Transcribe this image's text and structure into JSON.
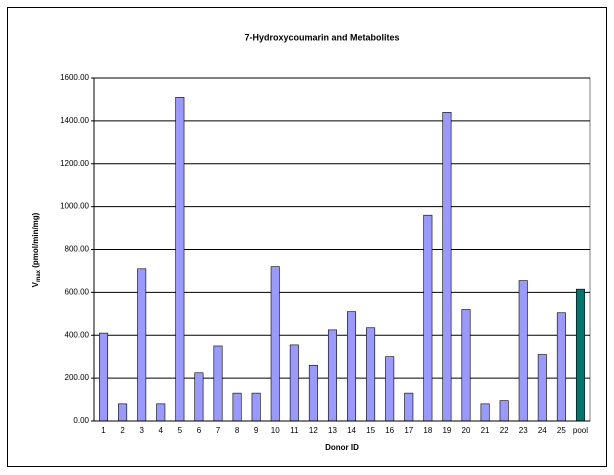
{
  "chart_data": {
    "type": "bar",
    "title": "7-Hydroxycoumarin and Metabolites",
    "x_label": "Donor ID",
    "y_label": {
      "main": "V",
      "subscript": "max",
      "rest": " (pmol/min/mg)"
    },
    "categories": [
      "1",
      "2",
      "3",
      "4",
      "5",
      "6",
      "7",
      "8",
      "9",
      "10",
      "11",
      "12",
      "13",
      "14",
      "15",
      "16",
      "17",
      "18",
      "19",
      "20",
      "21",
      "22",
      "23",
      "24",
      "25",
      "pool"
    ],
    "values": [
      410,
      80,
      710,
      80,
      1510,
      225,
      350,
      130,
      130,
      720,
      355,
      260,
      425,
      510,
      435,
      300,
      130,
      960,
      1440,
      520,
      80,
      95,
      655,
      310,
      505,
      615
    ],
    "colors": [
      "#9999ff",
      "#9999ff",
      "#9999ff",
      "#9999ff",
      "#9999ff",
      "#9999ff",
      "#9999ff",
      "#9999ff",
      "#9999ff",
      "#9999ff",
      "#9999ff",
      "#9999ff",
      "#9999ff",
      "#9999ff",
      "#9999ff",
      "#9999ff",
      "#9999ff",
      "#9999ff",
      "#9999ff",
      "#9999ff",
      "#9999ff",
      "#9999ff",
      "#9999ff",
      "#9999ff",
      "#9999ff",
      "#00776f"
    ],
    "ylim": [
      0,
      1600
    ],
    "yticks": [
      {
        "value": 0,
        "label": "0.00"
      },
      {
        "value": 200,
        "label": "200.00"
      },
      {
        "value": 400,
        "label": "400.00"
      },
      {
        "value": 600,
        "label": "600.00"
      },
      {
        "value": 800,
        "label": "800.00"
      },
      {
        "value": 1000,
        "label": "1000.00"
      },
      {
        "value": 1200,
        "label": "1200.00"
      },
      {
        "value": 1400,
        "label": "1400.00"
      },
      {
        "value": 1600,
        "label": "1600.00"
      }
    ],
    "grid": true
  }
}
